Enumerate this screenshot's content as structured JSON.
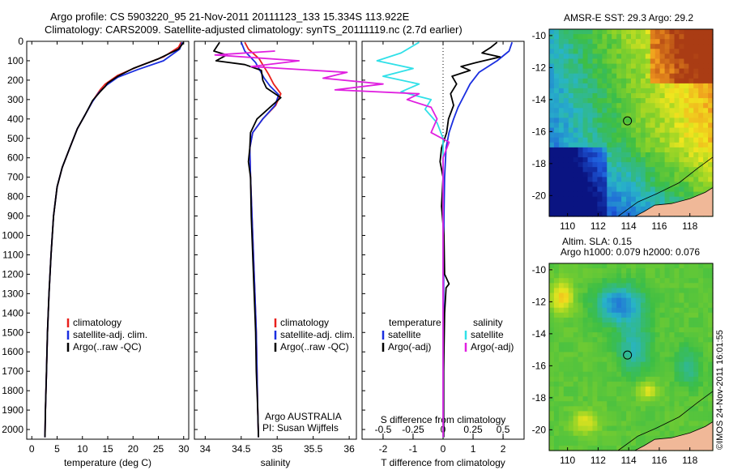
{
  "header": {
    "title_line1": "Argo profile: CS 5903220_95 21-Nov-2011 20111123_133 15.334S 113.922E",
    "title_line2": "Climatology: CARS2009. Satellite-adjusted climatology: synTS_20111119.nc (2.7d earlier)"
  },
  "footer_stamp": "©IMOS 24-Nov-2011 16:01:55",
  "colors": {
    "clim": "#e8201c",
    "sat": "#1a2ee0",
    "argo": "#000000",
    "sal_sat": "#30e0e8",
    "sal_argo": "#e020e0"
  },
  "chart_data": [
    {
      "id": "temperature",
      "type": "line",
      "xlabel": "temperature (deg C)",
      "ylabel": "",
      "xlim": [
        -1,
        31
      ],
      "ylim": [
        2050,
        0
      ],
      "xticks": [
        0,
        5,
        10,
        15,
        20,
        25,
        30
      ],
      "yticks": [
        0,
        100,
        200,
        300,
        400,
        500,
        600,
        700,
        800,
        900,
        1000,
        1100,
        1200,
        1300,
        1400,
        1500,
        1600,
        1700,
        1800,
        1900,
        2000
      ],
      "legend": {
        "placement": "lower-middle",
        "entries": [
          "climatology",
          "satellite-adj. clim.",
          "Argo(..raw -QC)"
        ]
      },
      "series": [
        {
          "name": "climatology",
          "color": "clim",
          "points": [
            [
              29.5,
              5
            ],
            [
              29,
              30
            ],
            [
              26,
              80
            ],
            [
              21,
              130
            ],
            [
              17,
              175
            ],
            [
              14.5,
              220
            ],
            [
              13.5,
              250
            ],
            [
              12.2,
              300
            ],
            [
              10.5,
              380
            ],
            [
              9,
              450
            ],
            [
              7.5,
              550
            ],
            [
              6,
              650
            ],
            [
              5,
              750
            ],
            [
              4.3,
              900
            ],
            [
              3.8,
              1100
            ],
            [
              3.4,
              1300
            ],
            [
              3.1,
              1500
            ],
            [
              2.9,
              1700
            ],
            [
              2.7,
              1900
            ],
            [
              2.6,
              2040
            ]
          ]
        },
        {
          "name": "satellite-adj. clim.",
          "color": "sat",
          "points": [
            [
              29.7,
              5
            ],
            [
              29.2,
              40
            ],
            [
              26,
              100
            ],
            [
              21,
              145
            ],
            [
              17,
              185
            ],
            [
              14.8,
              225
            ],
            [
              13.2,
              265
            ],
            [
              12,
              310
            ],
            [
              10.5,
              380
            ],
            [
              9,
              450
            ],
            [
              7.5,
              550
            ],
            [
              6,
              650
            ],
            [
              5,
              750
            ],
            [
              4.3,
              900
            ],
            [
              3.8,
              1100
            ],
            [
              3.4,
              1300
            ],
            [
              3.1,
              1500
            ],
            [
              2.9,
              1700
            ],
            [
              2.7,
              1900
            ],
            [
              2.6,
              2040
            ]
          ]
        },
        {
          "name": "Argo(..raw -QC)",
          "color": "argo",
          "points": [
            [
              30,
              5
            ],
            [
              29,
              40
            ],
            [
              25,
              90
            ],
            [
              20,
              140
            ],
            [
              17,
              180
            ],
            [
              15,
              215
            ],
            [
              14.5,
              232
            ],
            [
              13.5,
              260
            ],
            [
              12,
              305
            ],
            [
              10.5,
              380
            ],
            [
              9,
              450
            ],
            [
              7.5,
              550
            ],
            [
              6,
              650
            ],
            [
              5,
              750
            ],
            [
              4.3,
              900
            ],
            [
              3.8,
              1100
            ],
            [
              3.4,
              1300
            ],
            [
              3.1,
              1500
            ],
            [
              2.9,
              1700
            ],
            [
              2.7,
              1900
            ],
            [
              2.6,
              2040
            ]
          ]
        }
      ]
    },
    {
      "id": "salinity",
      "type": "line",
      "xlabel": "salinity",
      "xlim": [
        33.85,
        36.1
      ],
      "ylim": [
        2050,
        0
      ],
      "xticks": [
        34,
        34.5,
        35,
        35.5,
        36
      ],
      "legend": {
        "placement": "lower-middle",
        "entries": [
          "climatology",
          "satellite-adj. clim.",
          "Argo(..raw -QC)"
        ]
      },
      "annotation_line1": "Argo AUSTRALIA",
      "annotation_line2": "PI: Susan Wijffels",
      "series": [
        {
          "name": "climatology",
          "color": "clim",
          "points": [
            [
              34.55,
              5
            ],
            [
              34.6,
              40
            ],
            [
              34.75,
              90
            ],
            [
              34.88,
              170
            ],
            [
              34.95,
              220
            ],
            [
              35.05,
              270
            ],
            [
              34.98,
              330
            ],
            [
              34.8,
              400
            ],
            [
              34.66,
              470
            ],
            [
              34.62,
              550
            ],
            [
              34.63,
              700
            ],
            [
              34.65,
              900
            ],
            [
              34.67,
              1100
            ],
            [
              34.69,
              1300
            ],
            [
              34.71,
              1500
            ],
            [
              34.72,
              1700
            ],
            [
              34.73,
              1900
            ],
            [
              34.74,
              2040
            ]
          ]
        },
        {
          "name": "satellite-adj. clim.",
          "color": "sat",
          "points": [
            [
              34.5,
              5
            ],
            [
              34.55,
              50
            ],
            [
              34.7,
              110
            ],
            [
              34.82,
              190
            ],
            [
              34.9,
              230
            ],
            [
              35.02,
              275
            ],
            [
              34.97,
              330
            ],
            [
              34.8,
              400
            ],
            [
              34.66,
              470
            ],
            [
              34.62,
              550
            ],
            [
              34.63,
              700
            ],
            [
              34.65,
              900
            ],
            [
              34.67,
              1100
            ],
            [
              34.69,
              1300
            ],
            [
              34.71,
              1500
            ],
            [
              34.72,
              1700
            ],
            [
              34.73,
              1900
            ],
            [
              34.74,
              2040
            ]
          ]
        },
        {
          "name": "Argo(..raw -QC)",
          "color": "argo",
          "points": [
            [
              34.2,
              5
            ],
            [
              34.12,
              50
            ],
            [
              34.3,
              70
            ],
            [
              34.15,
              100
            ],
            [
              34.55,
              120
            ],
            [
              34.78,
              150
            ],
            [
              34.8,
              200
            ],
            [
              34.85,
              240
            ],
            [
              35.05,
              290
            ],
            [
              34.9,
              340
            ],
            [
              34.72,
              400
            ],
            [
              34.63,
              470
            ],
            [
              34.62,
              550
            ],
            [
              34.6,
              620
            ],
            [
              34.63,
              700
            ],
            [
              34.64,
              900
            ],
            [
              34.66,
              1100
            ],
            [
              34.68,
              1300
            ],
            [
              34.7,
              1500
            ],
            [
              34.71,
              1700
            ],
            [
              34.73,
              1900
            ],
            [
              34.74,
              2040
            ]
          ]
        }
      ]
    },
    {
      "id": "difference",
      "type": "line",
      "xlabel": "T difference from climatology",
      "xlabel_top": "S difference from climatology",
      "xlim": [
        -2.7,
        2.7
      ],
      "ylim": [
        2050,
        0
      ],
      "xticks": [
        -2,
        -1,
        0,
        1,
        2
      ],
      "s_ticks": [
        -0.5,
        -0.25,
        0,
        0.25,
        0.5
      ],
      "s_tick_labels": [
        "-0.5",
        "-0.25",
        "0",
        "0.25",
        "0.5"
      ],
      "legend_temperature_title": "temperature",
      "legend_salinity_title": "salinity",
      "legend_entries": [
        "satellite",
        "Argo(-adj)",
        "satellite",
        "Argo(-adj)"
      ],
      "series": [
        {
          "name": "T satellite",
          "color": "sat",
          "points": [
            [
              2.3,
              5
            ],
            [
              2.2,
              50
            ],
            [
              1.8,
              100
            ],
            [
              1.2,
              160
            ],
            [
              0.9,
              220
            ],
            [
              0.7,
              280
            ],
            [
              0.5,
              340
            ],
            [
              0.35,
              400
            ],
            [
              0.2,
              470
            ],
            [
              0.1,
              550
            ],
            [
              0.05,
              700
            ],
            [
              0.03,
              900
            ],
            [
              0.02,
              1200
            ],
            [
              0.02,
              1600
            ],
            [
              0.02,
              2040
            ]
          ]
        },
        {
          "name": "T Argo(-adj)",
          "color": "argo",
          "points": [
            [
              1.8,
              5
            ],
            [
              1.6,
              30
            ],
            [
              1.3,
              60
            ],
            [
              1.9,
              80
            ],
            [
              1.1,
              110
            ],
            [
              0.6,
              130
            ],
            [
              0.9,
              150
            ],
            [
              0.3,
              180
            ],
            [
              0.45,
              220
            ],
            [
              0.25,
              270
            ],
            [
              0.35,
              330
            ],
            [
              0.18,
              400
            ],
            [
              0.12,
              470
            ],
            [
              -0.05,
              550
            ],
            [
              -0.1,
              620
            ],
            [
              0.0,
              700
            ],
            [
              -0.05,
              850
            ],
            [
              0.03,
              1000
            ],
            [
              0.05,
              1200
            ],
            [
              0.2,
              1250
            ],
            [
              0.1,
              1270
            ],
            [
              0.05,
              1400
            ],
            [
              0.02,
              1700
            ],
            [
              0.02,
              2040
            ]
          ]
        },
        {
          "name": "S satellite",
          "color": "sal_sat",
          "points": [
            [
              -0.2,
              5
            ],
            [
              -0.35,
              60
            ],
            [
              -0.55,
              100
            ],
            [
              -0.25,
              140
            ],
            [
              -0.5,
              180
            ],
            [
              -0.2,
              220
            ],
            [
              -0.35,
              260
            ],
            [
              -0.1,
              300
            ],
            [
              -0.15,
              350
            ],
            [
              -0.05,
              420
            ],
            [
              0.0,
              500
            ],
            [
              0.0,
              700
            ],
            [
              0.0,
              1000
            ],
            [
              0.0,
              1500
            ],
            [
              0.0,
              2040
            ]
          ]
        },
        {
          "name": "S Argo(-adj)",
          "color": "sal_argo",
          "points": [
            [
              -1.4,
              50
            ],
            [
              -1.9,
              70
            ],
            [
              -1.2,
              100
            ],
            [
              -1.6,
              130
            ],
            [
              -0.8,
              160
            ],
            [
              -1.0,
              190
            ],
            [
              -0.5,
              220
            ],
            [
              -0.9,
              250
            ],
            [
              -0.2,
              270
            ],
            [
              -0.3,
              300
            ],
            [
              -0.1,
              340
            ],
            [
              -0.05,
              400
            ],
            [
              -0.1,
              470
            ],
            [
              0.05,
              520
            ],
            [
              0.0,
              600
            ],
            [
              0.0,
              700
            ],
            [
              0.0,
              1000
            ],
            [
              0.0,
              1500
            ],
            [
              0.0,
              2040
            ]
          ]
        }
      ]
    },
    {
      "id": "sst_map",
      "type": "heatmap",
      "title": "AMSR-E SST: 29.3 Argo: 29.2",
      "xticks": [
        110,
        112,
        114,
        116,
        118
      ],
      "yticks": [
        -10,
        -12,
        -14,
        -16,
        -18,
        -20
      ],
      "xlim": [
        108.8,
        119.5
      ],
      "ylim": [
        -21.3,
        -9.6
      ],
      "marker": [
        113.92,
        -15.33
      ]
    },
    {
      "id": "sla_map",
      "type": "heatmap",
      "title_line1": "Altim. SLA: 0.15",
      "title_line2": "Argo h1000: 0.079 h2000: 0.076",
      "xticks": [
        110,
        112,
        114,
        116,
        118
      ],
      "yticks": [
        -10,
        -12,
        -14,
        -16,
        -18,
        -20
      ],
      "xlim": [
        108.8,
        119.5
      ],
      "ylim": [
        -21.3,
        -9.6
      ],
      "marker": [
        113.92,
        -15.33
      ]
    }
  ]
}
